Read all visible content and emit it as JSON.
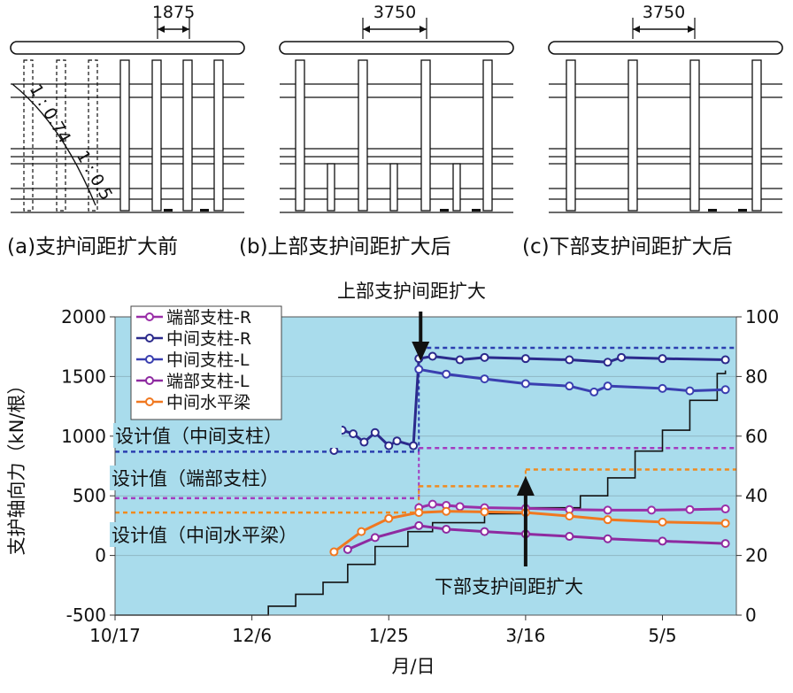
{
  "diagrams": {
    "a": {
      "caption": "(a)支护间距扩大前",
      "dimension": "1875"
    },
    "b": {
      "caption": "(b)上部支护间距扩大后",
      "dimension": "3750"
    },
    "c": {
      "caption": "(c)下部支护间距扩大后",
      "dimension": "3750"
    },
    "slope_labels": [
      "1 : 0.74",
      "1 : 0.5"
    ]
  },
  "chart_data": {
    "type": "line",
    "title": "",
    "xlabel": "月/日",
    "ylabel": "支护轴向力（kN/根）",
    "x_ticks": [
      "10/17",
      "12/6",
      "1/25",
      "3/16",
      "5/5"
    ],
    "xlim": [
      "10/17",
      "6/1"
    ],
    "ylim": [
      -500,
      2000
    ],
    "y_ticks": [
      -500,
      0,
      500,
      1000,
      1500,
      2000
    ],
    "y2lim": [
      0,
      100
    ],
    "y2_ticks": [
      0,
      20,
      40,
      60,
      80,
      100
    ],
    "grid": true,
    "legend_position": "top-left",
    "series": [
      {
        "name": "端部支柱-R",
        "color": "#9a2fa8",
        "values": [
          [
            "2/5",
            400
          ],
          [
            "2/10",
            430
          ],
          [
            "2/15",
            420
          ],
          [
            "2/20",
            410
          ],
          [
            "3/1",
            400
          ],
          [
            "3/16",
            395
          ],
          [
            "4/1",
            385
          ],
          [
            "4/15",
            380
          ],
          [
            "5/1",
            380
          ],
          [
            "5/15",
            385
          ],
          [
            "5/28",
            390
          ]
        ]
      },
      {
        "name": "中间支柱-R",
        "color": "#2b2a8c",
        "values": [
          [
            "1/5",
            880
          ],
          [
            "1/8",
            1050
          ],
          [
            "1/12",
            1020
          ],
          [
            "1/16",
            950
          ],
          [
            "1/20",
            1030
          ],
          [
            "1/25",
            920
          ],
          [
            "1/28",
            960
          ],
          [
            "2/3",
            920
          ],
          [
            "2/5",
            1650
          ],
          [
            "2/10",
            1670
          ],
          [
            "2/20",
            1640
          ],
          [
            "3/1",
            1660
          ],
          [
            "3/16",
            1650
          ],
          [
            "4/1",
            1640
          ],
          [
            "4/15",
            1620
          ],
          [
            "4/20",
            1660
          ],
          [
            "5/5",
            1650
          ],
          [
            "5/28",
            1640
          ]
        ]
      },
      {
        "name": "中间支柱-L",
        "color": "#3a3fb0",
        "values": [
          [
            "2/5",
            1560
          ],
          [
            "2/15",
            1520
          ],
          [
            "3/1",
            1480
          ],
          [
            "3/16",
            1440
          ],
          [
            "4/1",
            1420
          ],
          [
            "4/10",
            1370
          ],
          [
            "4/15",
            1420
          ],
          [
            "5/5",
            1400
          ],
          [
            "5/15",
            1380
          ],
          [
            "5/28",
            1390
          ]
        ]
      },
      {
        "name": "端部支柱-L",
        "color": "#8e2aa0",
        "values": [
          [
            "1/10",
            50
          ],
          [
            "1/20",
            150
          ],
          [
            "2/5",
            250
          ],
          [
            "2/15",
            220
          ],
          [
            "3/1",
            200
          ],
          [
            "3/16",
            180
          ],
          [
            "4/1",
            160
          ],
          [
            "4/15",
            140
          ],
          [
            "5/5",
            120
          ],
          [
            "5/28",
            100
          ]
        ]
      },
      {
        "name": "中间水平梁",
        "color": "#f07820",
        "values": [
          [
            "1/5",
            30
          ],
          [
            "1/15",
            200
          ],
          [
            "1/25",
            310
          ],
          [
            "2/5",
            360
          ],
          [
            "2/15",
            370
          ],
          [
            "3/1",
            365
          ],
          [
            "3/16",
            360
          ],
          [
            "4/1",
            330
          ],
          [
            "4/15",
            300
          ],
          [
            "5/5",
            280
          ],
          [
            "5/28",
            270
          ]
        ]
      }
    ],
    "excavation_depth_secondary_axis": {
      "color": "#111111",
      "values": [
        [
          "10/17",
          0
        ],
        [
          "12/9",
          0
        ],
        [
          "12/12",
          3
        ],
        [
          "12/22",
          7
        ],
        [
          "1/1",
          11
        ],
        [
          "1/10",
          17
        ],
        [
          "1/20",
          23
        ],
        [
          "2/1",
          28
        ],
        [
          "2/10",
          31
        ],
        [
          "3/1",
          34
        ],
        [
          "3/16",
          36
        ],
        [
          "4/5",
          40
        ],
        [
          "4/15",
          46
        ],
        [
          "4/25",
          55
        ],
        [
          "5/5",
          62
        ],
        [
          "5/15",
          72
        ],
        [
          "5/25",
          81
        ],
        [
          "5/28",
          82
        ]
      ]
    },
    "design_values": [
      {
        "label": "设计值（中间支柱）",
        "color": "#2b3fb0",
        "segments": [
          {
            "from": "10/17",
            "to": "2/5",
            "value": 870
          },
          {
            "from": "2/5",
            "to": "6/1",
            "value": 1740
          }
        ]
      },
      {
        "label": "设计值（端部支柱）",
        "color": "#a33cc0",
        "segments": [
          {
            "from": "10/17",
            "to": "2/5",
            "value": 480
          },
          {
            "from": "2/5",
            "to": "6/1",
            "value": 900
          }
        ]
      },
      {
        "label": "设计值（中间水平梁）",
        "color": "#f08a1e",
        "segments": [
          {
            "from": "10/17",
            "to": "2/5",
            "value": 360
          },
          {
            "from": "2/5",
            "to": "3/16",
            "value": 580
          },
          {
            "from": "3/16",
            "to": "6/1",
            "value": 720
          }
        ]
      }
    ],
    "annotations": [
      {
        "text": "上部支护间距扩大",
        "at": "2/5"
      },
      {
        "text": "下部支护间距扩大",
        "at": "3/16"
      }
    ]
  }
}
